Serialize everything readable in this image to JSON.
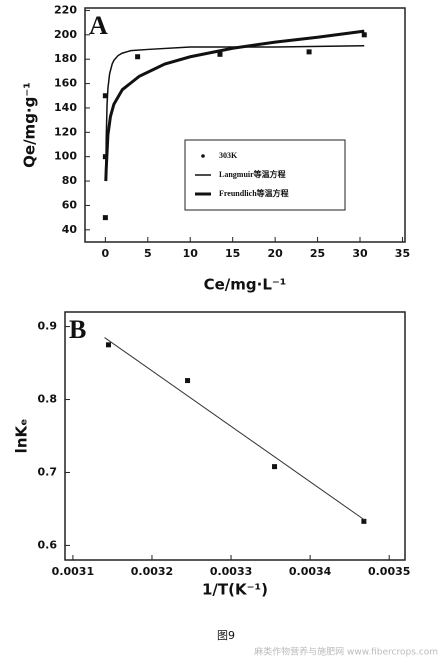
{
  "chart_data": [
    {
      "type": "scatter",
      "panel": "A",
      "x_label": "Ce/mg·L⁻¹",
      "y_label": "Qe/mg·g⁻¹",
      "xlim": [
        -2.4,
        35.3
      ],
      "ylim": [
        30,
        222
      ],
      "xticks": [
        0,
        5,
        10,
        15,
        20,
        25,
        30,
        35
      ],
      "yticks": [
        40,
        60,
        80,
        100,
        120,
        140,
        160,
        180,
        200,
        220
      ],
      "legend": "center-right",
      "series": [
        {
          "name": "303K",
          "style": "marker",
          "color": "#111",
          "x": [
            0,
            0,
            0,
            3.8,
            13.5,
            24,
            30.5
          ],
          "values": [
            50,
            100,
            150,
            182,
            184,
            186,
            200
          ]
        },
        {
          "name": "Langmuir等温方程",
          "style": "line",
          "width": 1.5,
          "color": "#111",
          "x": [
            0.05,
            0.1,
            0.2,
            0.3,
            0.5,
            0.8,
            1,
            1.5,
            2,
            3,
            5,
            10,
            20,
            30.5
          ],
          "values": [
            82,
            115,
            143,
            156,
            168,
            176,
            179,
            183,
            185,
            187,
            188,
            190,
            190,
            191
          ]
        },
        {
          "name": "Freundlich等温方程",
          "style": "line",
          "width": 3,
          "color": "#111",
          "x": [
            0.05,
            0.1,
            0.3,
            0.6,
            1,
            2,
            4,
            7,
            10,
            15,
            20,
            25,
            30.5
          ],
          "values": [
            80,
            90,
            118,
            133,
            143,
            155,
            166,
            176,
            182,
            189,
            194,
            198,
            203
          ]
        }
      ]
    },
    {
      "type": "scatter",
      "panel": "B",
      "x_label": "1/T(K⁻¹)",
      "y_label": "lnKₑ",
      "xlim": [
        0.00309,
        0.00352
      ],
      "ylim": [
        0.58,
        0.92
      ],
      "xticks": [
        0.0031,
        0.0032,
        0.0033,
        0.0034,
        0.0035
      ],
      "yticks": [
        0.6,
        0.7,
        0.8,
        0.9
      ],
      "series": [
        {
          "style": "marker",
          "color": "#111",
          "x": [
            0.003145,
            0.003245,
            0.003355,
            0.003468
          ],
          "values": [
            0.875,
            0.826,
            0.708,
            0.633
          ]
        },
        {
          "style": "line",
          "width": 1,
          "color": "#333",
          "x": [
            0.00314,
            0.00347
          ],
          "values": [
            0.885,
            0.634
          ]
        }
      ]
    }
  ],
  "caption": "图9",
  "watermark": "麻类作物营养与施肥网 www.fibercrops.com"
}
